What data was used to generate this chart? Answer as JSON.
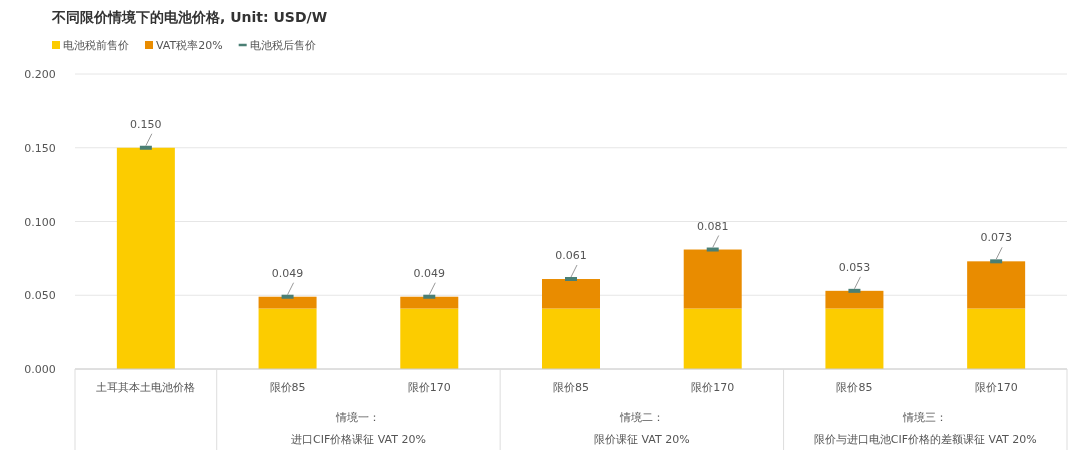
{
  "chart_data": {
    "type": "bar",
    "stacked": true,
    "title": "不同限价情境下的电池价格, Unit: USD/W",
    "categories": [
      "土耳其本土电池价格",
      "限价85",
      "限价170",
      "限价85",
      "限价170",
      "限价85",
      "限价170"
    ],
    "series": [
      {
        "name": "电池税前售价",
        "color": "#fccc00",
        "values": [
          0.15,
          0.041,
          0.041,
          0.041,
          0.041,
          0.041,
          0.041
        ]
      },
      {
        "name": "VAT税率20%",
        "color": "#e98c00",
        "values": [
          0,
          0.008,
          0.008,
          0.02,
          0.04,
          0.012,
          0.032
        ]
      },
      {
        "name": "电池税后售价",
        "type": "scatter",
        "color": "#4a7f74",
        "values": [
          0.15,
          0.049,
          0.049,
          0.061,
          0.081,
          0.053,
          0.073
        ],
        "value_labels": [
          "0.150",
          "0.049",
          "0.049",
          "0.061",
          "0.081",
          "0.053",
          "0.073"
        ]
      }
    ],
    "annotations": [
      "情境一：",
      "进口CIF价格课征 VAT 20%",
      "情境二：",
      "限价课征 VAT 20%",
      "情境三：",
      "限价与进口电池CIF价格的差额课征 VAT 20%"
    ],
    "ylim": [
      0,
      0.2
    ],
    "yticks": [
      {
        "value": 0,
        "label": "0.000"
      },
      {
        "value": 0.05,
        "label": "0.050"
      },
      {
        "value": 0.1,
        "label": "0.100"
      },
      {
        "value": 0.15,
        "label": "0.150"
      },
      {
        "value": 0.2,
        "label": "0.200"
      }
    ],
    "grid": "y",
    "legend": "top left"
  }
}
